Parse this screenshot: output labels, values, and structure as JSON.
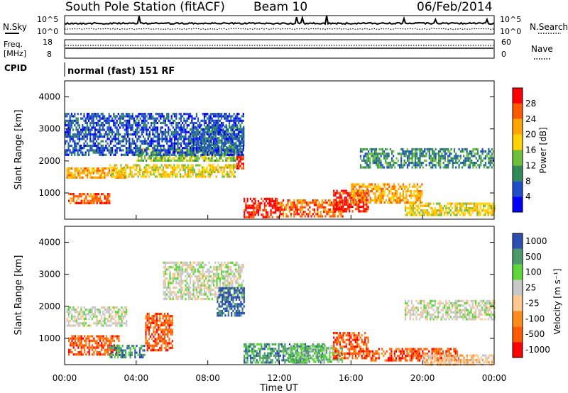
{
  "header": {
    "title": "South Pole Station (fitACF)",
    "beam": "Beam 10",
    "date": "06/Feb/2014"
  },
  "noise_panel": {
    "left_label": "N.Sky",
    "right_label": "N.Search",
    "tick_top": "10^5",
    "tick_bottom": "10^0"
  },
  "freq_panel": {
    "left_label_1": "Freq.",
    "left_label_2": "[MHz]",
    "left_tick_top": "18",
    "left_tick_bottom": "8",
    "right_label": "Nave",
    "right_tick_top": "60",
    "right_tick_bottom": "0"
  },
  "cpid": {
    "label": "CPID",
    "value": "normal (fast) 151 RF"
  },
  "x_axis": {
    "label": "Time UT",
    "ticks": [
      "00:00",
      "04:00",
      "08:00",
      "12:00",
      "16:00",
      "20:00",
      "00:00"
    ]
  },
  "colors": {
    "power": [
      "#0000ff",
      "#1f4fc8",
      "#2e8b57",
      "#6dbf3c",
      "#ffd200",
      "#ffa500",
      "#ff5a00",
      "#ff0000"
    ],
    "velocity": [
      "#ff0000",
      "#ff5a00",
      "#ff8c1a",
      "#ffc88c",
      "#c8c8c8",
      "#5cd638",
      "#4a9a6a",
      "#2a4fb0"
    ]
  },
  "chart_data": [
    {
      "type": "heatmap",
      "name": "power",
      "ylabel": "Slant Range [km]",
      "xlabel": "Time UT",
      "xlim": [
        0,
        24
      ],
      "ylim": [
        180,
        4500
      ],
      "yticks": [
        1000,
        2000,
        3000,
        4000
      ],
      "colorbar": {
        "label": "Power [dB]",
        "ticks": [
          "4",
          "8",
          "12",
          "16",
          "20",
          "24",
          "28"
        ],
        "range": [
          0,
          32
        ]
      },
      "blobs": [
        {
          "t0": 0.1,
          "t1": 3.5,
          "r0": 1500,
          "r1": 1800,
          "level": 5
        },
        {
          "t0": 0.2,
          "t1": 2.5,
          "r0": 700,
          "r1": 1000,
          "level": 6
        },
        {
          "t0": 2.5,
          "t1": 9.5,
          "r0": 1500,
          "r1": 1900,
          "level": 4
        },
        {
          "t0": 4.0,
          "t1": 9.8,
          "r0": 2000,
          "r1": 2400,
          "level": 3
        },
        {
          "t0": 7.0,
          "t1": 10.0,
          "r0": 2300,
          "r1": 3100,
          "level": 2
        },
        {
          "t0": 9.6,
          "t1": 10.0,
          "r0": 1800,
          "r1": 2300,
          "level": 7
        },
        {
          "t0": 10.0,
          "t1": 12.0,
          "r0": 280,
          "r1": 850,
          "level": 7
        },
        {
          "t0": 12.0,
          "t1": 15.5,
          "r0": 300,
          "r1": 800,
          "level": 6
        },
        {
          "t0": 15.0,
          "t1": 17.0,
          "r0": 400,
          "r1": 1100,
          "level": 7
        },
        {
          "t0": 16.0,
          "t1": 20.0,
          "r0": 700,
          "r1": 1300,
          "level": 5
        },
        {
          "t0": 16.5,
          "t1": 24.0,
          "r0": 1800,
          "r1": 2400,
          "level": 2
        },
        {
          "t0": 19.0,
          "t1": 24.0,
          "r0": 300,
          "r1": 700,
          "level": 4
        },
        {
          "t0": 0.0,
          "t1": 10.0,
          "r0": 2200,
          "r1": 3500,
          "level": 1
        }
      ]
    },
    {
      "type": "heatmap",
      "name": "velocity",
      "ylabel": "Slant Range [km]",
      "xlabel": "Time UT",
      "xlim": [
        0,
        24
      ],
      "ylim": [
        180,
        4500
      ],
      "yticks": [
        1000,
        2000,
        3000,
        4000
      ],
      "colorbar": {
        "label": "Velocity [m s⁻¹]",
        "ticks": [
          "-1000",
          "-500",
          "-100",
          "-25",
          "25",
          "100",
          "500",
          "1000"
        ],
        "range": [
          -1000,
          1000
        ]
      },
      "blobs": [
        {
          "t0": 0.1,
          "t1": 3.5,
          "r0": 1400,
          "r1": 2000,
          "level": 4
        },
        {
          "t0": 0.2,
          "t1": 3.0,
          "r0": 500,
          "r1": 1100,
          "level": 1
        },
        {
          "t0": 2.5,
          "t1": 4.5,
          "r0": 400,
          "r1": 800,
          "level": 6
        },
        {
          "t0": 4.5,
          "t1": 6.0,
          "r0": 600,
          "r1": 1800,
          "level": 1
        },
        {
          "t0": 5.5,
          "t1": 10.0,
          "r0": 2200,
          "r1": 3400,
          "level": 4
        },
        {
          "t0": 8.5,
          "t1": 10.0,
          "r0": 1700,
          "r1": 2600,
          "level": 7
        },
        {
          "t0": 10.0,
          "t1": 14.5,
          "r0": 280,
          "r1": 850,
          "level": 6
        },
        {
          "t0": 12.5,
          "t1": 15.5,
          "r0": 250,
          "r1": 800,
          "level": 5
        },
        {
          "t0": 15.0,
          "t1": 17.0,
          "r0": 400,
          "r1": 1200,
          "level": 1
        },
        {
          "t0": 17.0,
          "t1": 22.0,
          "r0": 300,
          "r1": 700,
          "level": 1
        },
        {
          "t0": 19.0,
          "t1": 24.0,
          "r0": 1600,
          "r1": 2200,
          "level": 4
        },
        {
          "t0": 20.0,
          "t1": 24.0,
          "r0": 200,
          "r1": 500,
          "level": 3
        }
      ]
    }
  ]
}
